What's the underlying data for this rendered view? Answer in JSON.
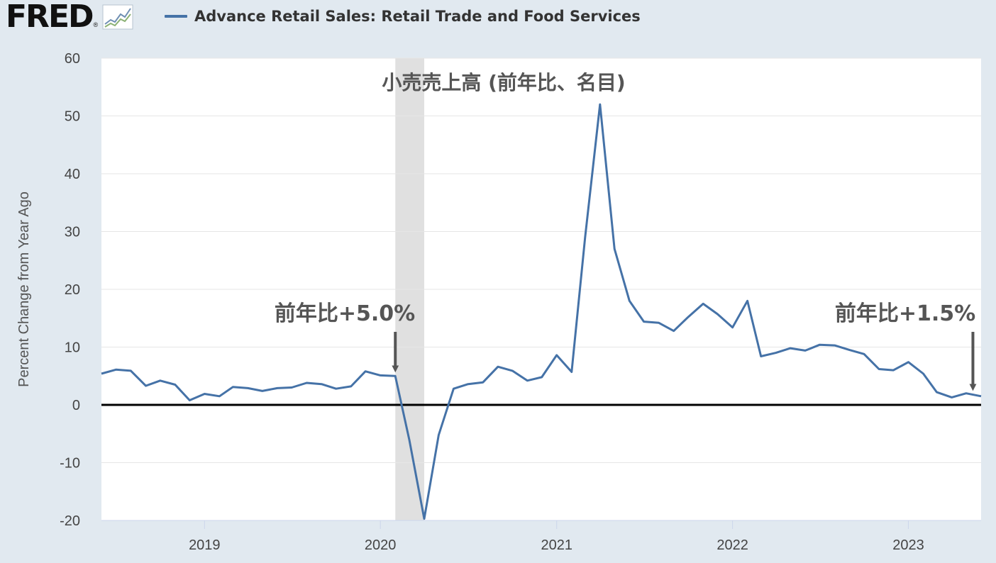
{
  "header": {
    "logo_text": "FRED",
    "logo_reg": "®",
    "legend_label": "Advance Retail Sales: Retail Trade and Food Services",
    "series_color": "#4572a7"
  },
  "annotations": {
    "title": "小売売上高 (前年比、名目)",
    "left_callout": "前年比+5.0%",
    "right_callout": "前年比+1.5%"
  },
  "chart_data": {
    "type": "line",
    "title": "",
    "ylabel": "Percent Change from Year Ago",
    "xlabel": "",
    "ylim": [
      -20,
      60
    ],
    "yticks": [
      -20,
      -10,
      0,
      10,
      20,
      30,
      40,
      50,
      60
    ],
    "ytick_labels": [
      "-20",
      "-10",
      "0",
      "10",
      "20",
      "30",
      "40",
      "50",
      "60"
    ],
    "xtick_labels": [
      "2019",
      "2020",
      "2021",
      "2022",
      "2023"
    ],
    "xtick_dates": [
      "2019-01-01",
      "2020-01-01",
      "2021-01-01",
      "2022-01-01",
      "2023-01-01"
    ],
    "x_range": [
      "2018-06-01",
      "2023-06-01"
    ],
    "grid": true,
    "zero_line": true,
    "recession_shading": [
      "2020-02-01",
      "2020-04-01"
    ],
    "series": [
      {
        "color": "#4572a7",
        "x": [
          "2018-06",
          "2018-07",
          "2018-08",
          "2018-09",
          "2018-10",
          "2018-11",
          "2018-12",
          "2019-01",
          "2019-02",
          "2019-03",
          "2019-04",
          "2019-05",
          "2019-06",
          "2019-07",
          "2019-08",
          "2019-09",
          "2019-10",
          "2019-11",
          "2019-12",
          "2020-01",
          "2020-02",
          "2020-03",
          "2020-04",
          "2020-05",
          "2020-06",
          "2020-07",
          "2020-08",
          "2020-09",
          "2020-10",
          "2020-11",
          "2020-12",
          "2021-01",
          "2021-02",
          "2021-03",
          "2021-04",
          "2021-05",
          "2021-06",
          "2021-07",
          "2021-08",
          "2021-09",
          "2021-10",
          "2021-11",
          "2021-12",
          "2022-01",
          "2022-02",
          "2022-03",
          "2022-04",
          "2022-05",
          "2022-06",
          "2022-07",
          "2022-08",
          "2022-09",
          "2022-10",
          "2022-11",
          "2022-12",
          "2023-01",
          "2023-02",
          "2023-03",
          "2023-04",
          "2023-05",
          "2023-06"
        ],
        "values": [
          5.4,
          6.1,
          5.9,
          3.3,
          4.2,
          3.5,
          0.8,
          1.9,
          1.5,
          3.1,
          2.9,
          2.4,
          2.9,
          3.0,
          3.8,
          3.6,
          2.8,
          3.2,
          5.8,
          5.1,
          5.0,
          -6.0,
          -19.7,
          -5.2,
          2.8,
          3.6,
          3.9,
          6.6,
          5.9,
          4.2,
          4.8,
          8.6,
          5.7,
          29.0,
          52.0,
          27.0,
          18.0,
          14.4,
          14.2,
          12.8,
          15.2,
          17.5,
          15.7,
          13.4,
          18.0,
          8.4,
          9.0,
          9.8,
          9.4,
          10.4,
          10.3,
          9.5,
          8.8,
          6.2,
          6.0,
          7.4,
          5.4,
          2.2,
          1.3,
          2.0,
          1.5
        ]
      }
    ]
  }
}
